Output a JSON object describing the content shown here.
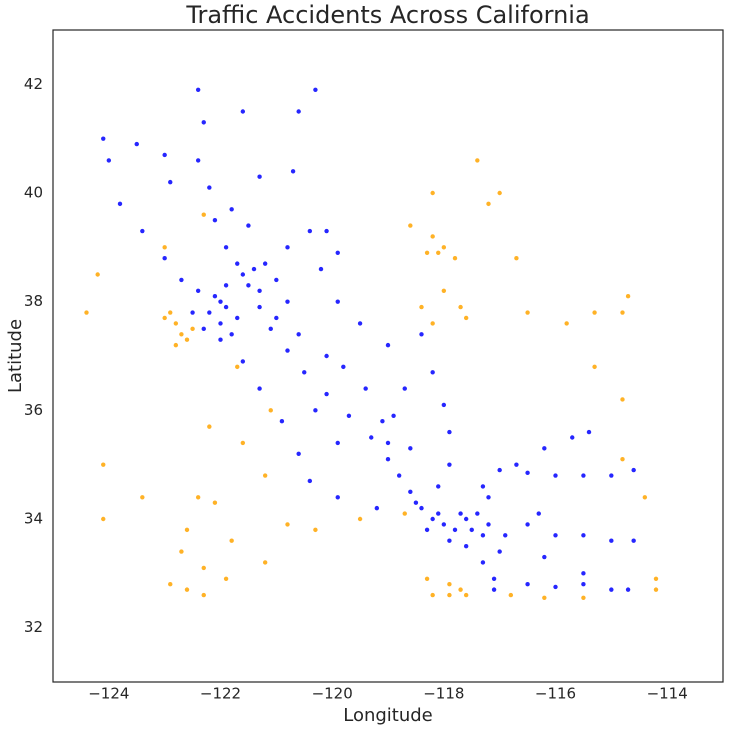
{
  "chart_data": {
    "type": "scatter",
    "title": "Traffic Accidents Across California",
    "x_label": "Longitude",
    "y_label": "Latitude",
    "xlim": [
      -125,
      -113
    ],
    "ylim": [
      31,
      43
    ],
    "xticks": [
      {
        "value": -124,
        "label": "−124"
      },
      {
        "value": -122,
        "label": "−122"
      },
      {
        "value": -120,
        "label": "−120"
      },
      {
        "value": -118,
        "label": "−118"
      },
      {
        "value": -116,
        "label": "−116"
      },
      {
        "value": -114,
        "label": "−114"
      }
    ],
    "yticks": [
      32,
      34,
      36,
      38,
      40,
      42
    ],
    "series": [
      {
        "color": "#0000ff",
        "x": [
          -122.4,
          -122.3,
          -122.4,
          -122.2,
          -122.1,
          -121.9,
          -121.7,
          -121.5,
          -121.3,
          -121.1,
          -120.8,
          -120.5,
          -120.1,
          -119.7,
          -119.3,
          -119.0,
          -118.8,
          -118.6,
          -118.4,
          -121.0,
          -120.6,
          -120.1,
          -119.8,
          -119.4,
          -119.1,
          -119.0,
          -124.1,
          -124.0,
          -123.8,
          -123.4,
          -123.0,
          -122.7,
          -122.5,
          -122.0,
          -121.6,
          -121.3,
          -120.9,
          -120.6,
          -120.4,
          -119.9,
          -119.2,
          -122.2,
          -122.0,
          -121.9,
          -122.1,
          -121.8,
          -122.3,
          -121.7,
          -122.4,
          -121.4,
          -121.2,
          -121.6,
          -121.3,
          -121.0,
          -120.8,
          -121.9,
          -122.0,
          -118.2,
          -118.0,
          -117.8,
          -117.6,
          -117.4,
          -117.2,
          -117.9,
          -117.6,
          -117.3,
          -117.1,
          -117.1,
          -117.0,
          -117.3,
          -117.5,
          -118.3,
          -118.1,
          -117.7,
          -116.9,
          -117.2,
          -118.5,
          -116.5,
          -116.0,
          -115.5,
          -115.0,
          -114.6,
          -116.5,
          -116.0,
          -115.5,
          -115.0,
          -114.7,
          -117.0,
          -116.5,
          -116.0,
          -115.5,
          -115.0,
          -114.6,
          -117.3,
          -116.7,
          -116.2,
          -115.7,
          -115.4,
          -120.8,
          -120.4,
          -120.1,
          -118.4,
          -118.2,
          -118.0,
          -117.9,
          -121.6,
          -120.6,
          -120.3,
          -121.3,
          -120.7,
          -123.5,
          -123.0,
          -122.9,
          -121.8,
          -121.5,
          -119.9,
          -119.5,
          -119.0,
          -120.3,
          -119.9,
          -118.9,
          -118.7,
          -118.6,
          -117.9,
          -118.1,
          -116.3,
          -115.5,
          -116.2,
          -120.2,
          -119.9
        ],
        "y": [
          41.9,
          41.3,
          40.6,
          40.1,
          39.5,
          39.0,
          38.7,
          38.3,
          37.9,
          37.5,
          37.1,
          36.7,
          36.3,
          35.9,
          35.5,
          35.1,
          34.8,
          34.5,
          34.2,
          37.7,
          37.4,
          37.0,
          36.8,
          36.4,
          35.8,
          35.4,
          41.0,
          40.6,
          39.8,
          39.3,
          38.8,
          38.4,
          37.8,
          37.3,
          36.9,
          36.4,
          35.8,
          35.2,
          34.7,
          34.4,
          34.2,
          37.8,
          37.6,
          37.9,
          38.1,
          37.4,
          37.5,
          37.7,
          38.2,
          38.6,
          38.7,
          38.5,
          38.2,
          38.4,
          38.0,
          38.3,
          38.0,
          34.0,
          33.9,
          33.8,
          34.0,
          34.1,
          33.9,
          33.6,
          33.5,
          33.2,
          32.9,
          32.7,
          33.4,
          33.7,
          33.8,
          33.8,
          34.1,
          34.1,
          33.7,
          34.4,
          34.3,
          33.9,
          33.7,
          33.7,
          33.6,
          33.6,
          32.8,
          32.75,
          32.8,
          32.7,
          32.7,
          34.9,
          34.85,
          34.8,
          34.8,
          34.8,
          34.9,
          34.6,
          35.0,
          35.3,
          35.5,
          35.6,
          39.0,
          39.3,
          39.3,
          37.4,
          36.7,
          36.1,
          35.6,
          41.5,
          41.5,
          41.9,
          40.3,
          40.4,
          40.9,
          40.7,
          40.2,
          39.7,
          39.4,
          38.0,
          37.6,
          37.2,
          36.0,
          35.4,
          35.9,
          36.4,
          35.3,
          35.0,
          34.6,
          34.1,
          33.0,
          33.3,
          38.6,
          38.9
        ]
      },
      {
        "color": "#ffa500",
        "x": [
          -122.9,
          -122.8,
          -122.7,
          -122.6,
          -122.5,
          -122.8,
          -123.0,
          -124.2,
          -124.4,
          -124.1,
          -124.1,
          -123.4,
          -122.9,
          -122.6,
          -122.3,
          -121.9,
          -122.4,
          -122.1,
          -121.8,
          -122.6,
          -121.2,
          -121.6,
          -122.2,
          -121.1,
          -120.8,
          -122.3,
          -118.2,
          -117.9,
          -117.6,
          -117.9,
          -118.3,
          -117.7,
          -116.8,
          -116.2,
          -115.5,
          -114.2,
          -118.2,
          -118.1,
          -117.8,
          -118.3,
          -118.0,
          -117.6,
          -117.7,
          -118.4,
          -118.2,
          -118.0,
          -118.2,
          -117.0,
          -117.2,
          -117.4,
          -118.6,
          -116.7,
          -116.5,
          -115.3,
          -114.8,
          -115.8,
          -114.7,
          -115.3,
          -114.8,
          -114.8,
          -114.4,
          -114.2,
          -123.0,
          -122.3,
          -121.7,
          -118.7,
          -119.5,
          -121.2,
          -120.3,
          -122.7
        ],
        "y": [
          37.8,
          37.6,
          37.4,
          37.3,
          37.5,
          37.2,
          37.7,
          38.5,
          37.8,
          35.0,
          34.0,
          34.4,
          32.8,
          32.7,
          32.6,
          32.9,
          34.4,
          34.3,
          33.6,
          33.8,
          33.2,
          35.4,
          35.7,
          36.0,
          33.9,
          33.1,
          32.6,
          32.6,
          32.6,
          32.8,
          32.9,
          32.7,
          32.6,
          32.55,
          32.55,
          32.7,
          39.2,
          38.9,
          38.8,
          38.9,
          39.0,
          37.7,
          37.9,
          37.9,
          37.6,
          38.2,
          40.0,
          40.0,
          39.8,
          40.6,
          39.4,
          38.8,
          37.8,
          37.8,
          37.8,
          37.6,
          38.1,
          36.8,
          36.2,
          35.1,
          34.4,
          32.9,
          39.0,
          39.6,
          36.8,
          34.1,
          34.0,
          34.8,
          33.8,
          33.4
        ]
      }
    ]
  }
}
